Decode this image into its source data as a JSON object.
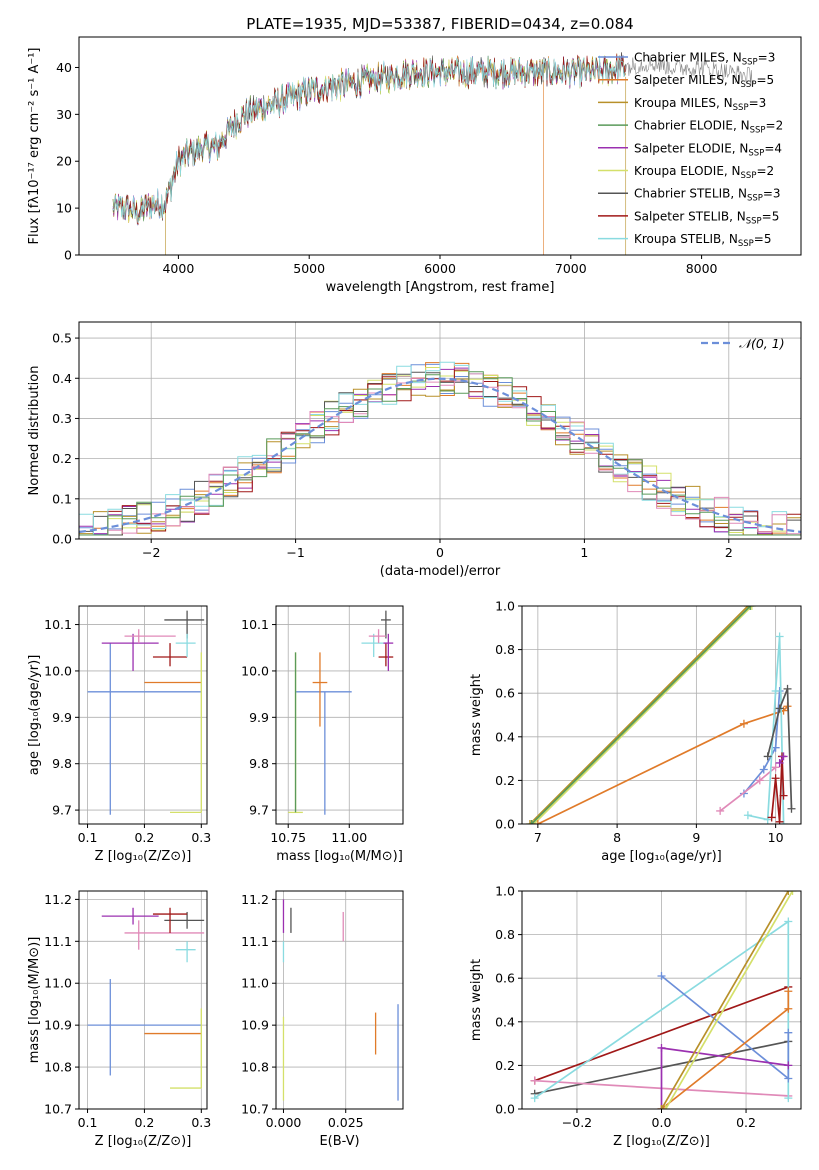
{
  "figure": {
    "title": "PLATE=1935, MJD=53387, FIBERID=0434, z=0.084"
  },
  "colors": {
    "Chabrier MILES": "#6c8fd9",
    "Salpeter MILES": "#e07b2a",
    "Kroupa MILES": "#b8902a",
    "Chabrier ELODIE": "#5a9a5a",
    "Salpeter ELODIE": "#9b30b0",
    "Kroupa ELODIE": "#d4e06a",
    "Chabrier STELIB": "#555555",
    "Salpeter STELIB": "#a01818",
    "Kroupa STELIB": "#8adbe0",
    "Pink": "#e08ab8",
    "GaussianDash": "#6c8fd9",
    "grid": "#b0b0b0"
  },
  "chart_data": [
    {
      "id": "spectrum",
      "type": "line",
      "title": "PLATE=1935, MJD=53387, FIBERID=0434, z=0.084",
      "xlabel": "wavelength [Angstrom, rest frame]",
      "ylabel": "Flux [fλ10⁻¹⁷ erg cm⁻² s⁻¹ A⁻¹]",
      "xlim": [
        3240,
        8760
      ],
      "ylim": [
        0,
        46.5
      ],
      "xticks": [
        4000,
        5000,
        6000,
        7000,
        8000
      ],
      "yticks": [
        0,
        10,
        20,
        30,
        40
      ],
      "grid": false,
      "legend_position": "upper-right",
      "legend": [
        {
          "label": "Chabrier MILES, N",
          "sub": "SSP",
          "suffix": "=3"
        },
        {
          "label": "Salpeter MILES, N",
          "sub": "SSP",
          "suffix": "=5"
        },
        {
          "label": "Kroupa MILES, N",
          "sub": "SSP",
          "suffix": "=3"
        },
        {
          "label": "Chabrier ELODIE, N",
          "sub": "SSP",
          "suffix": "=2"
        },
        {
          "label": "Salpeter ELODIE, N",
          "sub": "SSP",
          "suffix": "=4"
        },
        {
          "label": "Kroupa ELODIE, N",
          "sub": "SSP",
          "suffix": "=2"
        },
        {
          "label": "Chabrier STELIB, N",
          "sub": "SSP",
          "suffix": "=3"
        },
        {
          "label": "Salpeter STELIB, N",
          "sub": "SSP",
          "suffix": "=5"
        },
        {
          "label": "Kroupa STELIB, N",
          "sub": "SSP",
          "suffix": "=5"
        }
      ],
      "continuum": {
        "x": [
          3500,
          3600,
          3700,
          3800,
          3900,
          4000,
          4100,
          4200,
          4300,
          4400,
          4500,
          4600,
          4700,
          4800,
          5000,
          5200,
          5400,
          5600,
          5800,
          6000,
          6200,
          6400,
          6600,
          6800,
          7000,
          7200,
          7400,
          7600,
          7800,
          8000,
          8200,
          8400
        ],
        "y": [
          10,
          10,
          9,
          11,
          11,
          20,
          22,
          23,
          23,
          27,
          30,
          31,
          32,
          33,
          35,
          36,
          37,
          38,
          39,
          39,
          39,
          39,
          39,
          39,
          39,
          39,
          40,
          41,
          40,
          40,
          39,
          38
        ]
      }
    },
    {
      "id": "residuals",
      "type": "histogram",
      "xlabel": "(data-model)/error",
      "ylabel": "Normed distribution",
      "xlim": [
        -2.5,
        2.5
      ],
      "ylim": [
        0,
        0.54
      ],
      "xticks": [
        -2,
        -1,
        0,
        1,
        2
      ],
      "yticks": [
        0.0,
        0.1,
        0.2,
        0.3,
        0.4,
        0.5
      ],
      "grid": true,
      "legend_position": "upper-right",
      "legend": [
        "𝒩(0, 1)"
      ],
      "bin_width": 0.1
    },
    {
      "id": "z-age",
      "type": "scatter",
      "xlabel": "Z [log₁₀(Z/Z⊙)]",
      "ylabel": "age  [log₁₀(age/yr)]",
      "xlim": [
        0.085,
        0.31
      ],
      "ylim": [
        9.67,
        10.14
      ],
      "xticks": [
        0.1,
        0.2,
        0.3
      ],
      "yticks": [
        9.7,
        9.8,
        9.9,
        10.0,
        10.1
      ],
      "grid": true,
      "points": [
        {
          "series": "Chabrier MILES",
          "x": 0.14,
          "y": 9.955,
          "xerr": [
            0.1,
            0.3
          ],
          "yerr": [
            9.69,
            10.06
          ]
        },
        {
          "series": "Salpeter MILES",
          "x": 0.25,
          "y": 9.975,
          "xerr": [
            0.2,
            0.3
          ],
          "yerr": [
            9.975,
            9.975
          ]
        },
        {
          "series": "Kroupa ELODIE",
          "x": 0.3,
          "y": 9.695,
          "xerr": [
            0.245,
            0.3
          ],
          "yerr": [
            9.695,
            10.04
          ]
        },
        {
          "series": "Salpeter ELODIE",
          "x": 0.18,
          "y": 10.06,
          "xerr": [
            0.125,
            0.225
          ],
          "yerr": [
            10.0,
            10.08
          ]
        },
        {
          "series": "Pink",
          "x": 0.19,
          "y": 10.075,
          "xerr": [
            0.165,
            0.255
          ],
          "yerr": [
            10.06,
            10.09
          ]
        },
        {
          "series": "Chabrier STELIB",
          "x": 0.275,
          "y": 10.11,
          "xerr": [
            0.235,
            0.305
          ],
          "yerr": [
            10.07,
            10.13
          ]
        },
        {
          "series": "Salpeter STELIB",
          "x": 0.245,
          "y": 10.03,
          "xerr": [
            0.215,
            0.275
          ],
          "yerr": [
            10.01,
            10.06
          ]
        },
        {
          "series": "Kroupa STELIB",
          "x": 0.275,
          "y": 10.06,
          "xerr": [
            0.255,
            0.29
          ],
          "yerr": [
            10.03,
            10.08
          ]
        }
      ]
    },
    {
      "id": "mass-age",
      "type": "scatter",
      "xlabel": "mass [log₁₀(M/M⊙)]",
      "ylabel": "",
      "xlim": [
        10.7,
        11.22
      ],
      "ylim": [
        9.67,
        10.14
      ],
      "xticks": [
        10.75,
        11.0
      ],
      "yticks": [
        9.7,
        9.8,
        9.9,
        10.0,
        10.1
      ],
      "grid": true,
      "points": [
        {
          "series": "Chabrier MILES",
          "x": 10.9,
          "y": 9.955,
          "xerr": [
            10.78,
            11.01
          ],
          "yerr": [
            9.69,
            9.955
          ]
        },
        {
          "series": "Salpeter MILES",
          "x": 10.88,
          "y": 9.975,
          "xerr": [
            10.85,
            10.91
          ],
          "yerr": [
            9.88,
            10.04
          ]
        },
        {
          "series": "Kroupa ELODIE",
          "x": 10.78,
          "y": 9.695,
          "xerr": [
            10.75,
            10.81
          ],
          "yerr": [
            9.695,
            10.04
          ]
        },
        {
          "series": "Chabrier ELODIE",
          "x": 10.78,
          "y": 9.695,
          "xerr": [
            10.78,
            10.78
          ],
          "yerr": [
            9.695,
            10.04
          ]
        },
        {
          "series": "Kroupa STELIB",
          "x": 11.1,
          "y": 10.06,
          "xerr": [
            11.05,
            11.14
          ],
          "yerr": [
            10.03,
            10.08
          ]
        },
        {
          "series": "Salpeter STELIB",
          "x": 11.15,
          "y": 10.03,
          "xerr": [
            11.12,
            11.18
          ],
          "yerr": [
            10.01,
            10.06
          ]
        },
        {
          "series": "Salpeter ELODIE",
          "x": 11.16,
          "y": 10.06,
          "xerr": [
            11.14,
            11.18
          ],
          "yerr": [
            10.0,
            10.08
          ]
        },
        {
          "series": "Chabrier STELIB",
          "x": 11.15,
          "y": 10.11,
          "xerr": [
            11.13,
            11.17
          ],
          "yerr": [
            10.07,
            10.13
          ]
        },
        {
          "series": "Pink",
          "x": 11.12,
          "y": 10.075,
          "xerr": [
            11.08,
            11.15
          ],
          "yerr": [
            10.06,
            10.09
          ]
        }
      ]
    },
    {
      "id": "age-weight",
      "type": "line",
      "xlabel": "age  [log₁₀(age/yr)]",
      "ylabel": "mass weight",
      "xlim": [
        6.8,
        10.32
      ],
      "ylim": [
        0,
        1.0
      ],
      "xticks": [
        7,
        8,
        9,
        10
      ],
      "yticks": [
        0.0,
        0.2,
        0.4,
        0.6,
        0.8,
        1.0
      ],
      "grid": true,
      "series": [
        {
          "name": "Kroupa MILES",
          "x": [
            6.9,
            9.65
          ],
          "y": [
            0.0,
            1.0
          ]
        },
        {
          "name": "Kroupa ELODIE",
          "x": [
            6.95,
            9.7
          ],
          "y": [
            0.0,
            1.0
          ]
        },
        {
          "name": "Salpeter MILES",
          "x": [
            7.0,
            9.6,
            10.1,
            10.15
          ],
          "y": [
            0.0,
            0.46,
            0.52,
            0.54
          ]
        },
        {
          "name": "Chabrier MILES",
          "x": [
            9.6,
            9.85,
            10.0,
            10.05
          ],
          "y": [
            0.14,
            0.25,
            0.35,
            0.61
          ]
        },
        {
          "name": "Pink",
          "x": [
            9.3,
            9.8,
            10.0
          ],
          "y": [
            0.06,
            0.2,
            0.26
          ]
        },
        {
          "name": "Kroupa STELIB",
          "x": [
            9.65,
            9.9,
            10.0,
            10.05,
            10.1
          ],
          "y": [
            0.04,
            0.02,
            0.61,
            0.86,
            0.0
          ]
        },
        {
          "name": "Chabrier STELIB",
          "x": [
            9.9,
            10.05,
            10.15,
            10.2
          ],
          "y": [
            0.31,
            0.53,
            0.62,
            0.07
          ]
        },
        {
          "name": "Salpeter STELIB",
          "x": [
            9.95,
            10.0,
            10.05,
            10.08,
            10.1
          ],
          "y": [
            0.03,
            0.21,
            0.01,
            0.31,
            0.13
          ]
        },
        {
          "name": "Salpeter ELODIE",
          "x": [
            10.05,
            10.1
          ],
          "y": [
            0.28,
            0.31
          ]
        },
        {
          "name": "Chabrier ELODIE",
          "x": [
            6.92,
            9.68
          ],
          "y": [
            0.0,
            1.0
          ]
        }
      ]
    },
    {
      "id": "z-mass",
      "type": "scatter",
      "xlabel": "Z [log₁₀(Z/Z⊙)]",
      "ylabel": "mass [log₁₀(M/M⊙)]",
      "xlim": [
        0.085,
        0.31
      ],
      "ylim": [
        10.7,
        11.22
      ],
      "xticks": [
        0.1,
        0.2,
        0.3
      ],
      "yticks": [
        10.7,
        10.8,
        10.9,
        11.0,
        11.1,
        11.2
      ],
      "grid": true,
      "points": [
        {
          "series": "Chabrier MILES",
          "x": 0.14,
          "y": 10.9,
          "xerr": [
            0.1,
            0.3
          ],
          "yerr": [
            10.78,
            11.01
          ]
        },
        {
          "series": "Salpeter MILES",
          "x": 0.25,
          "y": 10.88,
          "xerr": [
            0.2,
            0.3
          ],
          "yerr": [
            10.88,
            10.88
          ]
        },
        {
          "series": "Kroupa ELODIE",
          "x": 0.3,
          "y": 10.75,
          "xerr": [
            0.245,
            0.3
          ],
          "yerr": [
            10.75,
            10.94
          ]
        },
        {
          "series": "Salpeter ELODIE",
          "x": 0.18,
          "y": 11.16,
          "xerr": [
            0.125,
            0.225
          ],
          "yerr": [
            11.14,
            11.18
          ]
        },
        {
          "series": "Pink",
          "x": 0.19,
          "y": 11.12,
          "xerr": [
            0.165,
            0.305
          ],
          "yerr": [
            11.08,
            11.15
          ]
        },
        {
          "series": "Chabrier STELIB",
          "x": 0.275,
          "y": 11.15,
          "xerr": [
            0.235,
            0.305
          ],
          "yerr": [
            11.13,
            11.17
          ]
        },
        {
          "series": "Salpeter STELIB",
          "x": 0.245,
          "y": 11.165,
          "xerr": [
            0.215,
            0.275
          ],
          "yerr": [
            11.12,
            11.18
          ]
        },
        {
          "series": "Kroupa STELIB",
          "x": 0.275,
          "y": 11.08,
          "xerr": [
            0.255,
            0.29
          ],
          "yerr": [
            11.05,
            11.1
          ]
        }
      ]
    },
    {
      "id": "ebv-mass",
      "type": "scatter",
      "xlabel": "E(B-V)",
      "ylabel": "",
      "xlim": [
        -0.003,
        0.048
      ],
      "ylim": [
        10.7,
        11.22
      ],
      "xticks": [
        0.0,
        0.025
      ],
      "xticklabels": [
        "0.000",
        "0.025"
      ],
      "yticks": [
        10.7,
        10.8,
        10.9,
        11.0,
        11.1,
        11.2
      ],
      "grid": true,
      "points": [
        {
          "series": "Chabrier MILES",
          "x": 0.046,
          "y": 10.9,
          "xerr": [
            0.046,
            0.046
          ],
          "yerr": [
            10.72,
            10.95
          ]
        },
        {
          "series": "Salpeter MILES",
          "x": 0.037,
          "y": 10.88,
          "xerr": [
            0.037,
            0.037
          ],
          "yerr": [
            10.83,
            10.93
          ]
        },
        {
          "series": "Kroupa ELODIE",
          "x": 0.0,
          "y": 10.75,
          "xerr": [
            0.0,
            0.0
          ],
          "yerr": [
            10.72,
            10.92
          ]
        },
        {
          "series": "Salpeter ELODIE",
          "x": 0.0,
          "y": 11.16,
          "xerr": [
            0.0,
            0.0
          ],
          "yerr": [
            11.12,
            11.2
          ]
        },
        {
          "series": "Chabrier STELIB",
          "x": 0.003,
          "y": 11.15,
          "xerr": [
            0.003,
            0.003
          ],
          "yerr": [
            11.12,
            11.18
          ]
        },
        {
          "series": "Pink",
          "x": 0.024,
          "y": 11.12,
          "xerr": [
            0.024,
            0.024
          ],
          "yerr": [
            11.1,
            11.17
          ]
        },
        {
          "series": "Kroupa STELIB",
          "x": 0.0,
          "y": 11.08,
          "xerr": [
            0.0,
            0.0
          ],
          "yerr": [
            11.05,
            11.1
          ]
        }
      ]
    },
    {
      "id": "z-weight",
      "type": "line",
      "xlabel": "Z [log₁₀(Z/Z⊙)]",
      "ylabel": "mass weight",
      "xlim": [
        -0.33,
        0.33
      ],
      "ylim": [
        0,
        1.0
      ],
      "xticks": [
        -0.2,
        0.0,
        0.2
      ],
      "xticklabels": [
        "−0.2",
        "0.0",
        "0.2"
      ],
      "yticks": [
        0.0,
        0.2,
        0.4,
        0.6,
        0.8,
        1.0
      ],
      "grid": true,
      "series": [
        {
          "name": "Salpeter STELIB",
          "x": [
            -0.3,
            0.3
          ],
          "y": [
            0.13,
            0.56
          ]
        },
        {
          "name": "Chabrier STELIB",
          "x": [
            -0.3,
            0.3
          ],
          "y": [
            0.07,
            0.31
          ]
        },
        {
          "name": "Pink",
          "x": [
            -0.3,
            0.3
          ],
          "y": [
            0.13,
            0.06
          ]
        },
        {
          "name": "Kroupa STELIB",
          "x": [
            -0.3,
            0.3,
            0.3
          ],
          "y": [
            0.05,
            0.86,
            0.05
          ]
        },
        {
          "name": "Chabrier MILES",
          "x": [
            0.0,
            0.3,
            0.3
          ],
          "y": [
            0.61,
            0.14,
            0.35
          ]
        },
        {
          "name": "Salpeter ELODIE",
          "x": [
            0.0,
            0.0,
            0.3
          ],
          "y": [
            0.0,
            0.28,
            0.2
          ]
        },
        {
          "name": "Salpeter MILES",
          "x": [
            0.0,
            0.3,
            0.3
          ],
          "y": [
            0.0,
            0.46,
            0.54
          ]
        },
        {
          "name": "Kroupa MILES",
          "x": [
            0.0,
            0.3
          ],
          "y": [
            0.0,
            1.0
          ]
        },
        {
          "name": "Kroupa ELODIE",
          "x": [
            0.01,
            0.31
          ],
          "y": [
            0.0,
            1.0
          ]
        }
      ]
    }
  ]
}
